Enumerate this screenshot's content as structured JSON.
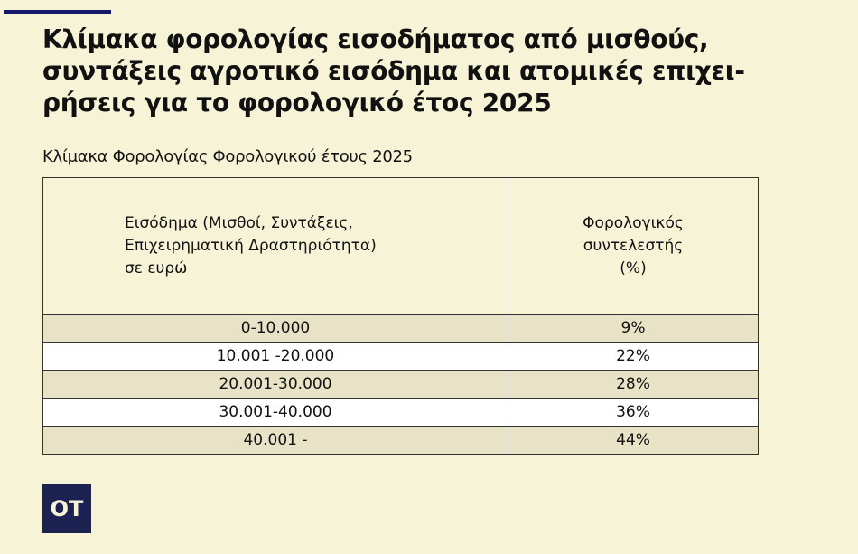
{
  "title": "Κλίμακα φορολογίας εισοδήματος από μισθούς, συντάξεις αγροτικό εισόδημα και ατομικές επιχει-ρήσεις για το φορολογικό έτος 2025",
  "title_lines": [
    "Κλίμακα φορολογίας εισοδήματος από μισθούς,",
    "συντάξεις αγροτικό εισόδημα και ατομικές επιχει-",
    "ρήσεις για το φορολογικό έτος 2025"
  ],
  "subtitle": "Κλίμακα Φορολογίας Φορολογικού έτους 2025",
  "table": {
    "headers": [
      [
        "Εισόδημα (Μισθοί, Συντάξεις,",
        "Επιχειρηματική Δραστηριότητα)",
        "σε ευρώ"
      ],
      [
        "Φορολογικός",
        "συντελεστής",
        "(%)"
      ]
    ],
    "rows": [
      [
        "0-10.000",
        "9%"
      ],
      [
        "10.001 -20.000",
        "22%"
      ],
      [
        "20.001-30.000",
        "28%"
      ],
      [
        "30.001-40.000",
        "36%"
      ],
      [
        "40.001 -",
        "44%"
      ]
    ]
  },
  "logo": "OT",
  "colors": {
    "accent": "#16166a",
    "background": "#f7f3d6",
    "logo_bg": "#1b2252",
    "row_shade": "#e8e2c6"
  }
}
